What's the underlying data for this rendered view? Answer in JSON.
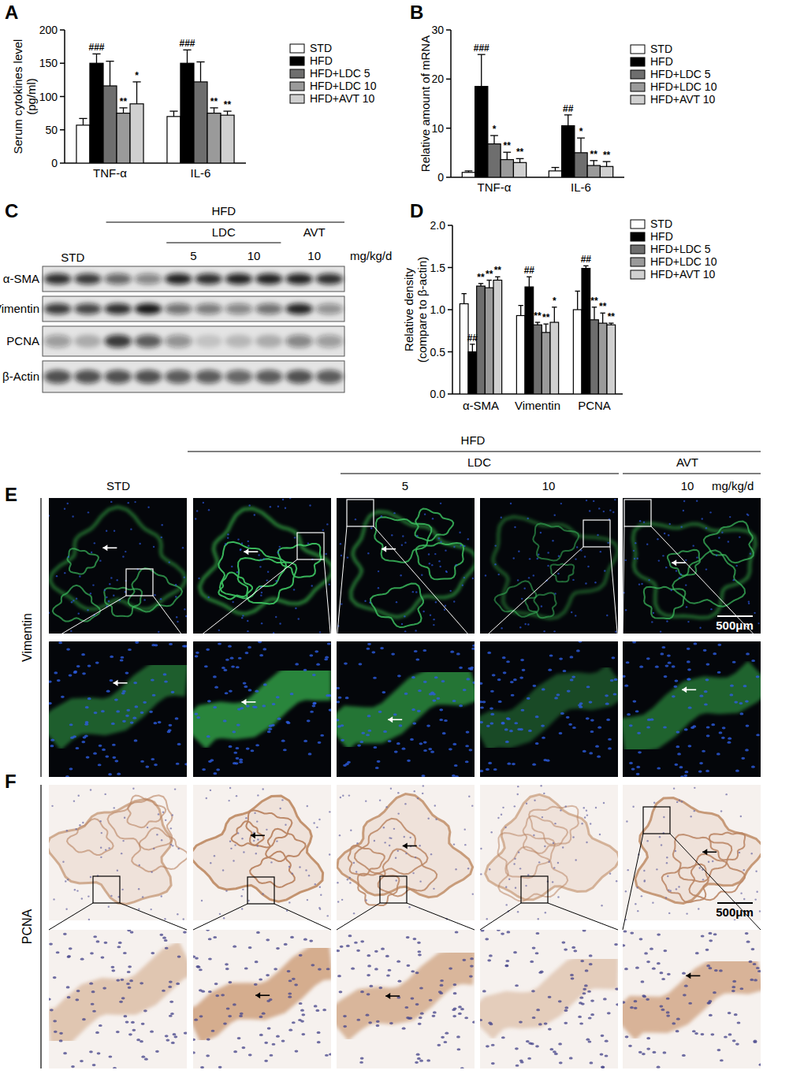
{
  "chart_data": [
    {
      "panel_label": "A",
      "type": "bar",
      "y_label": [
        "Serum cytokines level",
        "(pg/ml)"
      ],
      "categories": [
        "TNF-α",
        "IL-6"
      ],
      "series": [
        {
          "name": "STD",
          "color": "#ffffff",
          "values": [
            57,
            70
          ],
          "errors": [
            10,
            8
          ],
          "annotations": [
            null,
            null
          ]
        },
        {
          "name": "HFD",
          "color": "#000000",
          "values": [
            150,
            150
          ],
          "errors": [
            14,
            20
          ],
          "annotations": [
            "###",
            "###"
          ]
        },
        {
          "name": "HFD+LDC 5",
          "color": "#6e6e6e",
          "values": [
            116,
            122
          ],
          "errors": [
            37,
            30
          ],
          "annotations": [
            null,
            null
          ]
        },
        {
          "name": "HFD+LDC 10",
          "color": "#9a9a9a",
          "values": [
            75,
            75
          ],
          "errors": [
            8,
            8
          ],
          "annotations": [
            "**",
            "**"
          ]
        },
        {
          "name": "HFD+AVT 10",
          "color": "#d0d0d0",
          "values": [
            89,
            72
          ],
          "errors": [
            33,
            6
          ],
          "annotations": [
            "*",
            "**"
          ]
        }
      ],
      "ylim": [
        0,
        200
      ],
      "yticks": [
        0,
        50,
        100,
        150,
        200
      ],
      "legend": "right"
    },
    {
      "panel_label": "B",
      "type": "bar",
      "y_label": [
        "Relative amount of mRNA"
      ],
      "categories": [
        "TNF-α",
        "IL-6"
      ],
      "series": [
        {
          "name": "STD",
          "color": "#ffffff",
          "values": [
            1.0,
            1.3
          ],
          "errors": [
            0.3,
            0.7
          ],
          "annotations": [
            null,
            null
          ]
        },
        {
          "name": "HFD",
          "color": "#000000",
          "values": [
            18.5,
            10.5
          ],
          "errors": [
            6.5,
            2.2
          ],
          "annotations": [
            "###",
            "##"
          ]
        },
        {
          "name": "HFD+LDC 5",
          "color": "#6e6e6e",
          "values": [
            6.8,
            5.0
          ],
          "errors": [
            1.7,
            3.0
          ],
          "annotations": [
            "*",
            "*"
          ]
        },
        {
          "name": "HFD+LDC 10",
          "color": "#9a9a9a",
          "values": [
            3.6,
            2.4
          ],
          "errors": [
            1.5,
            1.0
          ],
          "annotations": [
            "**",
            "**"
          ]
        },
        {
          "name": "HFD+AVT 10",
          "color": "#d0d0d0",
          "values": [
            3.0,
            2.2
          ],
          "errors": [
            0.8,
            1.0
          ],
          "annotations": [
            "**",
            "**"
          ]
        }
      ],
      "ylim": [
        0,
        30
      ],
      "yticks": [
        0,
        10,
        20,
        30
      ],
      "legend": "right"
    },
    {
      "panel_label": "D",
      "type": "bar",
      "y_label": [
        "Relative density",
        "(compare to β-actin)"
      ],
      "categories": [
        "α-SMA",
        "Vimentin",
        "PCNA"
      ],
      "series": [
        {
          "name": "STD",
          "color": "#ffffff",
          "values": [
            1.07,
            0.93,
            1.0
          ],
          "errors": [
            0.12,
            0.12,
            0.22
          ],
          "annotations": [
            null,
            null,
            null
          ]
        },
        {
          "name": "HFD",
          "color": "#000000",
          "values": [
            0.5,
            1.27,
            1.49
          ],
          "errors": [
            0.09,
            0.12,
            0.03
          ],
          "annotations": [
            "##",
            "##",
            "##"
          ]
        },
        {
          "name": "HFD+LDC 5",
          "color": "#6e6e6e",
          "values": [
            1.28,
            0.82,
            0.88
          ],
          "errors": [
            0.03,
            0.03,
            0.15
          ],
          "annotations": [
            "**",
            "**",
            "**"
          ]
        },
        {
          "name": "HFD+LDC 10",
          "color": "#9a9a9a",
          "values": [
            1.26,
            0.73,
            0.84
          ],
          "errors": [
            0.09,
            0.1,
            0.12
          ],
          "annotations": [
            "**",
            "**",
            "**"
          ]
        },
        {
          "name": "HFD+AVT 10",
          "color": "#d0d0d0",
          "values": [
            1.35,
            0.85,
            0.82
          ],
          "errors": [
            0.04,
            0.18,
            0.02
          ],
          "annotations": [
            "**",
            "*",
            "**"
          ]
        }
      ],
      "ylim": [
        0,
        2
      ],
      "yticks": [
        {
          "value": 0,
          "label": "0.0"
        },
        0.5,
        {
          "value": 1,
          "label": "1.0"
        },
        1.5,
        {
          "value": 2,
          "label": "2.0"
        }
      ],
      "legend": "right"
    }
  ],
  "blot": {
    "panel_label": "C",
    "group": "HFD",
    "control": "STD",
    "unit": "mg/kg/d",
    "treatments": [
      {
        "name": "LDC",
        "doses": [
          "5",
          "10"
        ]
      },
      {
        "name": "AVT",
        "doses": [
          "10"
        ]
      }
    ],
    "rows": [
      {
        "name": "α-SMA",
        "bands": [
          0.85,
          0.8,
          0.6,
          0.45,
          0.9,
          0.85,
          0.9,
          0.9,
          0.9,
          0.85
        ]
      },
      {
        "name": "Vimentin",
        "bands": [
          0.8,
          0.75,
          0.85,
          0.95,
          0.55,
          0.5,
          0.45,
          0.55,
          0.9,
          0.4
        ]
      },
      {
        "name": "PCNA",
        "bands": [
          0.35,
          0.25,
          0.8,
          0.65,
          0.4,
          0.15,
          0.2,
          0.25,
          0.45,
          0.35
        ]
      },
      {
        "name": "β-Actin",
        "bands": [
          0.7,
          0.7,
          0.7,
          0.7,
          0.65,
          0.65,
          0.6,
          0.65,
          0.7,
          0.65
        ]
      }
    ]
  },
  "micrographs": {
    "group": "HFD",
    "control": "STD",
    "unit": "mg/kg/d",
    "treatments": [
      {
        "name": "LDC",
        "doses": [
          "5",
          "10"
        ]
      },
      {
        "name": "AVT",
        "doses": [
          "10"
        ]
      }
    ],
    "panels": [
      {
        "panel_label": "E",
        "stain": "Vimentin",
        "scale_bar": "500μm"
      },
      {
        "panel_label": "F",
        "stain": "PCNA",
        "scale_bar": "500μm"
      }
    ]
  }
}
